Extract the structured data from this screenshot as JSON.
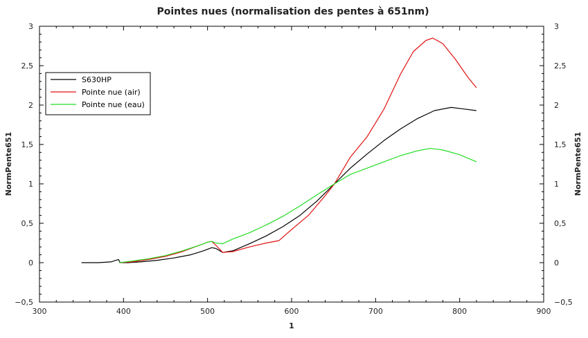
{
  "chart_data": {
    "type": "line",
    "title": "Pointes nues (normalisation des pentes à 651nm)",
    "xlabel": "1",
    "ylabel_left": "NormPente651",
    "ylabel_right": "NormPente651",
    "xlim": [
      300,
      900
    ],
    "ylim": [
      -0.5,
      3
    ],
    "x_ticks": [
      "300",
      "400",
      "500",
      "600",
      "700",
      "800",
      "900"
    ],
    "y_ticks": [
      "−0,5",
      "0",
      "0,5",
      "1",
      "1,5",
      "2",
      "2,5",
      "3"
    ],
    "grid": false,
    "legend_position": "top-left",
    "series": [
      {
        "name": "S630HP",
        "color": "#000000",
        "x": [
          350,
          370,
          385,
          394,
          396,
          405,
          420,
          440,
          460,
          480,
          495,
          505,
          510,
          518,
          530,
          550,
          570,
          590,
          610,
          630,
          651,
          670,
          690,
          710,
          730,
          750,
          770,
          790,
          805,
          820
        ],
        "y": [
          0.0,
          0.0,
          0.01,
          0.04,
          0.0,
          0.0,
          0.01,
          0.03,
          0.06,
          0.1,
          0.15,
          0.19,
          0.18,
          0.13,
          0.15,
          0.24,
          0.34,
          0.46,
          0.6,
          0.78,
          1.0,
          1.2,
          1.38,
          1.55,
          1.7,
          1.83,
          1.93,
          1.97,
          1.95,
          1.93
        ]
      },
      {
        "name": "Pointe nue (air)",
        "color": "#e01010",
        "x": [
          395,
          410,
          430,
          450,
          470,
          490,
          500,
          505,
          510,
          518,
          530,
          550,
          570,
          585,
          600,
          620,
          640,
          651,
          670,
          690,
          710,
          730,
          745,
          760,
          768,
          780,
          795,
          810,
          820
        ],
        "y": [
          0.0,
          0.01,
          0.04,
          0.08,
          0.14,
          0.22,
          0.26,
          0.27,
          0.22,
          0.13,
          0.14,
          0.2,
          0.25,
          0.28,
          0.42,
          0.6,
          0.85,
          1.0,
          1.34,
          1.6,
          1.95,
          2.4,
          2.68,
          2.82,
          2.85,
          2.78,
          2.58,
          2.35,
          2.22
        ]
      },
      {
        "name": "Pointe nue (eau)",
        "color": "#22dd22",
        "x": [
          395,
          410,
          430,
          450,
          470,
          490,
          500,
          505,
          510,
          518,
          530,
          550,
          570,
          590,
          610,
          630,
          651,
          670,
          690,
          710,
          730,
          750,
          765,
          780,
          800,
          820
        ],
        "y": [
          0.0,
          0.02,
          0.05,
          0.09,
          0.15,
          0.22,
          0.26,
          0.27,
          0.25,
          0.24,
          0.3,
          0.38,
          0.48,
          0.59,
          0.72,
          0.86,
          1.0,
          1.12,
          1.2,
          1.28,
          1.36,
          1.42,
          1.45,
          1.43,
          1.37,
          1.28
        ]
      }
    ]
  }
}
